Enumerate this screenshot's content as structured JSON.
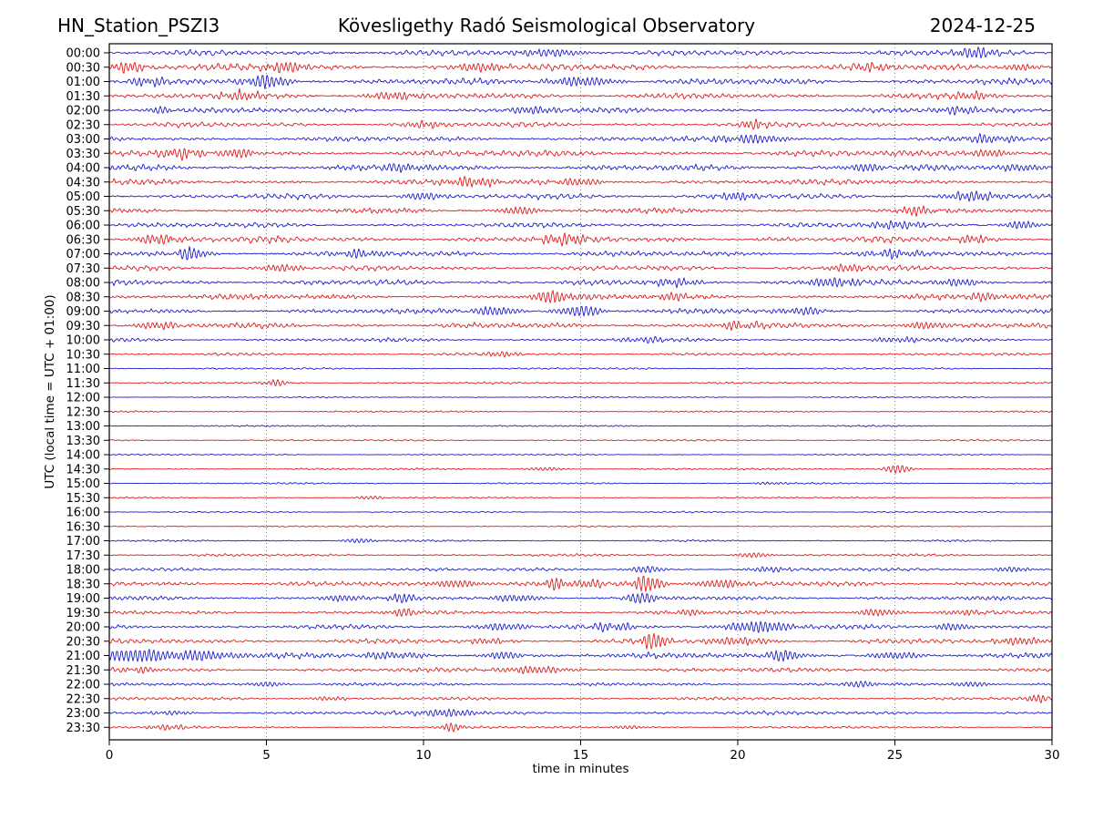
{
  "header": {
    "station": "HN_Station_PSZI3",
    "observatory": "Kövesligethy Radó Seismological Observatory",
    "date": "2024-12-25"
  },
  "axes": {
    "xlabel": "time in minutes",
    "ylabel": "UTC (local time = UTC + 01:00)",
    "x_ticks": [
      "0",
      "5",
      "10",
      "15",
      "20",
      "25",
      "30"
    ],
    "x_gridlines_min": [
      5,
      10,
      15,
      20,
      25
    ],
    "x_range": [
      0,
      30
    ]
  },
  "colors": {
    "trace_blue": "#1c1ccd",
    "trace_red": "#dd1c1c",
    "grid": "#777777",
    "frame": "#000000",
    "text": "#000000",
    "background": "#ffffff"
  },
  "chart_data": {
    "type": "line",
    "subtype": "helicorder-dayplot",
    "title": "HN_Station_PSZI3 — Kövesligethy Radó Seismological Observatory — 2024-12-25",
    "xlabel": "time in minutes",
    "ylabel": "UTC (local time = UTC + 01:00)",
    "x_range": [
      0,
      30
    ],
    "row_duration_minutes": 30,
    "grid": "vertical-dotted-every-5-min",
    "legend": "none",
    "row_colors_alternate": [
      "blue",
      "red"
    ],
    "rows": [
      {
        "label": "00:00",
        "color": "blue",
        "amp": 2.8,
        "events": [
          [
            14,
            3.5,
            0.8
          ],
          [
            27.6,
            5,
            0.5
          ]
        ]
      },
      {
        "label": "00:30",
        "color": "red",
        "amp": 3.2,
        "events": [
          [
            0.6,
            5,
            0.4
          ],
          [
            5.6,
            5,
            0.5
          ],
          [
            11.8,
            4,
            0.6
          ],
          [
            24.2,
            3.5,
            0.4
          ],
          [
            29,
            3,
            0.4
          ]
        ]
      },
      {
        "label": "01:00",
        "color": "blue",
        "amp": 3.0,
        "events": [
          [
            1.2,
            4,
            0.4
          ],
          [
            5.0,
            6.5,
            0.5
          ],
          [
            15.0,
            4.5,
            0.8
          ]
        ]
      },
      {
        "label": "01:30",
        "color": "red",
        "amp": 2.8,
        "events": [
          [
            4.2,
            4,
            0.5
          ],
          [
            9,
            3.5,
            0.6
          ],
          [
            27.5,
            3.5,
            0.5
          ]
        ]
      },
      {
        "label": "02:00",
        "color": "blue",
        "amp": 2.4,
        "events": [
          [
            1.6,
            3.5,
            0.3
          ],
          [
            13.5,
            3.5,
            0.6
          ],
          [
            27,
            3.5,
            0.5
          ]
        ]
      },
      {
        "label": "02:30",
        "color": "red",
        "amp": 2.4,
        "events": [
          [
            10,
            3,
            0.5
          ],
          [
            20.5,
            4.5,
            0.3
          ]
        ]
      },
      {
        "label": "03:00",
        "color": "blue",
        "amp": 2.4,
        "events": [
          [
            20.5,
            4,
            0.8
          ],
          [
            28,
            3.5,
            0.6
          ]
        ]
      },
      {
        "label": "03:30",
        "color": "red",
        "amp": 3.0,
        "events": [
          [
            2.3,
            4.5,
            0.5
          ],
          [
            4.1,
            4.5,
            0.4
          ],
          [
            28,
            3.5,
            0.5
          ]
        ]
      },
      {
        "label": "04:00",
        "color": "blue",
        "amp": 2.8,
        "events": [
          [
            9.5,
            3.5,
            0.6
          ],
          [
            24,
            3.5,
            0.5
          ],
          [
            29,
            4,
            0.4
          ]
        ]
      },
      {
        "label": "04:30",
        "color": "red",
        "amp": 2.6,
        "events": [
          [
            11.5,
            4.5,
            0.6
          ],
          [
            15,
            3.5,
            0.5
          ]
        ]
      },
      {
        "label": "05:00",
        "color": "blue",
        "amp": 2.6,
        "events": [
          [
            10,
            3.5,
            0.5
          ],
          [
            20,
            3.5,
            0.5
          ],
          [
            27.5,
            4.5,
            0.6
          ]
        ]
      },
      {
        "label": "05:30",
        "color": "red",
        "amp": 2.4,
        "events": [
          [
            13,
            3.5,
            0.5
          ],
          [
            25.8,
            3.5,
            0.4
          ]
        ]
      },
      {
        "label": "06:00",
        "color": "blue",
        "amp": 2.4,
        "events": [
          [
            25,
            3.5,
            0.7
          ],
          [
            29,
            4,
            0.4
          ]
        ]
      },
      {
        "label": "06:30",
        "color": "red",
        "amp": 3.0,
        "events": [
          [
            1.5,
            4.5,
            0.5
          ],
          [
            14.5,
            4.5,
            0.6
          ],
          [
            27.5,
            3.5,
            0.4
          ]
        ]
      },
      {
        "label": "07:00",
        "color": "blue",
        "amp": 2.6,
        "events": [
          [
            2.6,
            6.5,
            0.35
          ],
          [
            8,
            3.5,
            0.5
          ],
          [
            25,
            3.5,
            0.6
          ]
        ]
      },
      {
        "label": "07:30",
        "color": "red",
        "amp": 2.4,
        "events": [
          [
            5.5,
            3.5,
            0.5
          ],
          [
            23.5,
            3.5,
            0.5
          ]
        ]
      },
      {
        "label": "08:00",
        "color": "blue",
        "amp": 2.6,
        "events": [
          [
            18,
            3.5,
            0.6
          ],
          [
            23,
            4.5,
            0.6
          ],
          [
            27,
            3.5,
            0.5
          ]
        ]
      },
      {
        "label": "08:30",
        "color": "red",
        "amp": 2.6,
        "events": [
          [
            14.2,
            5.5,
            0.6
          ],
          [
            17.8,
            3.5,
            0.4
          ],
          [
            28,
            3.5,
            0.5
          ]
        ]
      },
      {
        "label": "09:00",
        "color": "blue",
        "amp": 2.4,
        "events": [
          [
            12.3,
            4.5,
            0.5
          ],
          [
            15,
            5.5,
            0.5
          ],
          [
            22,
            3.5,
            0.5
          ]
        ]
      },
      {
        "label": "09:30",
        "color": "red",
        "amp": 2.6,
        "events": [
          [
            1.5,
            3.5,
            0.5
          ],
          [
            20,
            3.5,
            0.5
          ],
          [
            26,
            3.5,
            0.5
          ]
        ]
      },
      {
        "label": "10:00",
        "color": "blue",
        "amp": 1.8,
        "events": [
          [
            17,
            2.5,
            0.5
          ],
          [
            25,
            2.5,
            0.5
          ]
        ]
      },
      {
        "label": "10:30",
        "color": "red",
        "amp": 1.3,
        "events": [
          [
            12.5,
            2.5,
            0.4
          ]
        ]
      },
      {
        "label": "11:00",
        "color": "blue",
        "amp": 0.9,
        "events": []
      },
      {
        "label": "11:30",
        "color": "red",
        "amp": 0.9,
        "events": [
          [
            5.3,
            3.5,
            0.25
          ]
        ]
      },
      {
        "label": "12:00",
        "color": "blue",
        "amp": 0.7,
        "events": []
      },
      {
        "label": "12:30",
        "color": "red",
        "amp": 0.8,
        "events": []
      },
      {
        "label": "13:00",
        "color": "blue",
        "amp": 0.8,
        "events": []
      },
      {
        "label": "13:30",
        "color": "red",
        "amp": 0.8,
        "events": []
      },
      {
        "label": "14:00",
        "color": "blue",
        "amp": 0.7,
        "events": []
      },
      {
        "label": "14:30",
        "color": "red",
        "amp": 0.9,
        "events": [
          [
            13.9,
            1.8,
            0.4
          ],
          [
            25.1,
            4.5,
            0.3
          ]
        ]
      },
      {
        "label": "15:00",
        "color": "blue",
        "amp": 0.8,
        "events": [
          [
            21,
            1.2,
            0.4
          ]
        ]
      },
      {
        "label": "15:30",
        "color": "red",
        "amp": 0.7,
        "events": [
          [
            8.3,
            1.8,
            0.3
          ]
        ]
      },
      {
        "label": "16:00",
        "color": "blue",
        "amp": 0.7,
        "events": []
      },
      {
        "label": "16:30",
        "color": "red",
        "amp": 0.7,
        "events": []
      },
      {
        "label": "17:00",
        "color": "blue",
        "amp": 0.9,
        "events": [
          [
            8,
            2.2,
            0.4
          ]
        ]
      },
      {
        "label": "17:30",
        "color": "red",
        "amp": 1.2,
        "events": [
          [
            20.5,
            2.5,
            0.4
          ]
        ]
      },
      {
        "label": "18:00",
        "color": "blue",
        "amp": 1.5,
        "events": [
          [
            17.1,
            3.5,
            0.4
          ],
          [
            21,
            2.5,
            0.5
          ],
          [
            28.7,
            2.5,
            0.4
          ]
        ]
      },
      {
        "label": "18:30",
        "color": "red",
        "amp": 2.4,
        "events": [
          [
            11,
            3.5,
            0.6
          ],
          [
            14.2,
            5.5,
            0.3
          ],
          [
            15.3,
            4.5,
            0.3
          ],
          [
            17.1,
            8.5,
            0.35
          ],
          [
            19.5,
            4,
            0.6
          ]
        ]
      },
      {
        "label": "19:00",
        "color": "blue",
        "amp": 2.0,
        "events": [
          [
            7.3,
            3.5,
            0.4
          ],
          [
            9.2,
            3.5,
            0.4
          ],
          [
            13,
            3.5,
            0.5
          ],
          [
            17,
            4.5,
            0.5
          ]
        ]
      },
      {
        "label": "19:30",
        "color": "red",
        "amp": 1.8,
        "events": [
          [
            9.3,
            3.5,
            0.35
          ],
          [
            18.5,
            2.5,
            0.5
          ],
          [
            24.5,
            3.5,
            0.5
          ],
          [
            27,
            2.5,
            0.4
          ]
        ]
      },
      {
        "label": "20:00",
        "color": "blue",
        "amp": 2.2,
        "events": [
          [
            12.5,
            3.5,
            0.6
          ],
          [
            16,
            3.5,
            0.6
          ],
          [
            20.7,
            5.5,
            0.8
          ],
          [
            26.8,
            3.5,
            0.4
          ]
        ]
      },
      {
        "label": "20:30",
        "color": "red",
        "amp": 2.4,
        "events": [
          [
            12,
            2.5,
            0.5
          ],
          [
            17.3,
            8.5,
            0.3
          ],
          [
            20,
            3.5,
            0.8
          ],
          [
            29,
            3.5,
            0.6
          ]
        ]
      },
      {
        "label": "21:00",
        "color": "blue",
        "amp": 2.6,
        "events": [
          [
            0.8,
            6.5,
            0.9
          ],
          [
            3,
            4.5,
            0.7
          ],
          [
            9,
            3.5,
            0.6
          ],
          [
            12.5,
            3.5,
            0.4
          ],
          [
            21.5,
            4.5,
            0.5
          ],
          [
            25,
            3.5,
            0.5
          ]
        ]
      },
      {
        "label": "21:30",
        "color": "red",
        "amp": 2.0,
        "events": [
          [
            1,
            2.5,
            0.5
          ],
          [
            13.5,
            3.5,
            0.8
          ]
        ]
      },
      {
        "label": "22:00",
        "color": "blue",
        "amp": 1.5,
        "events": [
          [
            5,
            2.5,
            0.4
          ],
          [
            24,
            2.5,
            0.5
          ],
          [
            27.5,
            2.5,
            0.4
          ]
        ]
      },
      {
        "label": "22:30",
        "color": "red",
        "amp": 1.5,
        "events": [
          [
            7,
            1.8,
            0.5
          ],
          [
            29.5,
            4.5,
            0.2
          ]
        ]
      },
      {
        "label": "23:00",
        "color": "blue",
        "amp": 1.8,
        "events": [
          [
            2,
            1.8,
            0.5
          ],
          [
            10.8,
            3.5,
            0.7
          ]
        ]
      },
      {
        "label": "23:30",
        "color": "red",
        "amp": 1.1,
        "events": [
          [
            1.9,
            2.5,
            0.5
          ],
          [
            10.9,
            4.5,
            0.25
          ],
          [
            16.5,
            1.8,
            0.4
          ]
        ]
      }
    ]
  }
}
